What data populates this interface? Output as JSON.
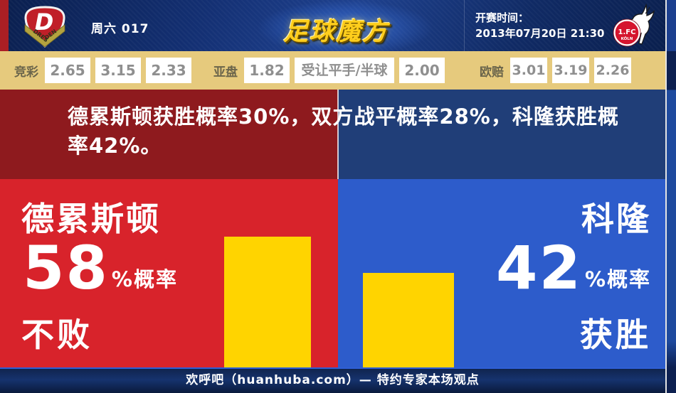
{
  "header": {
    "round_label": "周六 017",
    "brand_logo_text": "足球魔方",
    "kickoff_label": "开赛时间：",
    "kickoff_datetime": "2013年07月20日 21:30",
    "home_badge": {
      "letter": "D",
      "ribbon": "DRESDEN"
    },
    "away_badge": {
      "line1": "1.FC",
      "line2": "KÖLN"
    }
  },
  "odds": {
    "groups": [
      {
        "label": "竞彩",
        "values": [
          "2.65",
          "3.15",
          "2.33"
        ]
      },
      {
        "label": "亚盘",
        "values": [
          "1.82",
          "受让平手/半球",
          "2.00"
        ]
      },
      {
        "label": "欧赔",
        "values": [
          "3.01",
          "3.19",
          "2.26"
        ]
      }
    ]
  },
  "home": {
    "name": "德累斯顿",
    "percent_suffix": "%概率",
    "outcome": "不败"
  },
  "away": {
    "name": "科隆",
    "percent_suffix": "%概率",
    "outcome": "获胜"
  },
  "footer": {
    "text": "欢呼吧（huanhuba.com）— 特约专家本场观点"
  },
  "colors": {
    "home_red": "#d8232b",
    "away_blue": "#2d5ccb",
    "dark_home_red": "#8e1a1e",
    "dark_away_blue": "#203e78",
    "bar_yellow": "#ffd400",
    "odds_panel_tan": "#e6ca7d",
    "header_navy": "#132f72",
    "brand_gold": "#ffce1c"
  },
  "chart_data": {
    "type": "bar",
    "title": "德累斯顿获胜概率30%，双方战平概率28%，科隆获胜概率42%。",
    "categories": [
      "德累斯顿不败",
      "科隆获胜"
    ],
    "values": [
      58,
      42
    ],
    "unit": "%",
    "ylim": [
      0,
      100
    ],
    "bar_color": "#ffd400",
    "annotations": {
      "home_win_prob": 30,
      "draw_prob": 28,
      "away_win_prob": 42
    }
  }
}
